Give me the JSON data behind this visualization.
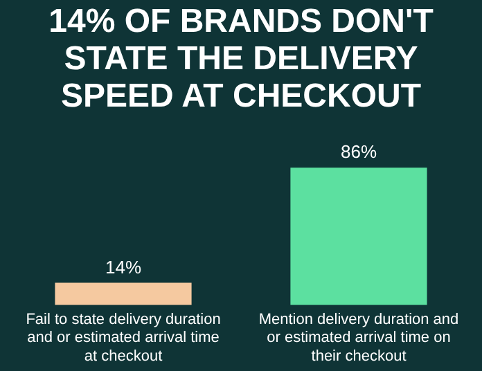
{
  "chart_data": {
    "type": "bar",
    "title": "14% OF BRANDS DON'T STATE THE DELIVERY SPEED AT CHECKOUT",
    "categories": [
      "Fail to state delivery duration and or estimated arrival time at checkout",
      "Mention delivery duration and or estimated arrival time on their checkout"
    ],
    "values": [
      14,
      86
    ],
    "value_labels": [
      "14%",
      "86%"
    ],
    "colors": [
      "#f5c9a0",
      "#5ce0a0"
    ],
    "grid": false,
    "legend": false,
    "tick_labels": "x"
  }
}
